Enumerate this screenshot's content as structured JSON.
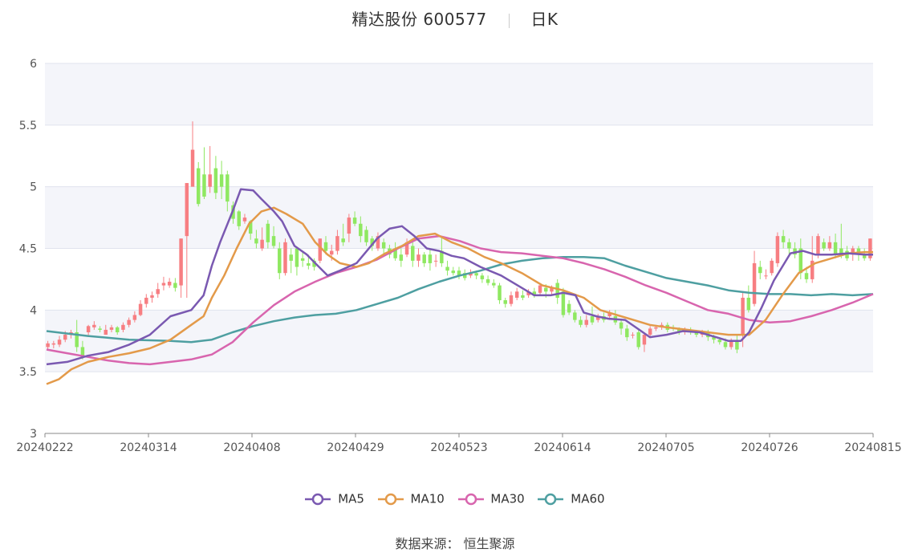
{
  "header": {
    "name": "精达股份",
    "code": "600577",
    "period": "日K"
  },
  "source": {
    "label": "数据来源：",
    "value": "恒生聚源"
  },
  "colors": {
    "up": "#f77e82",
    "down": "#8fe861",
    "ma5": "#7a59b1",
    "ma10": "#e39a4a",
    "ma30": "#d865ae",
    "ma60": "#4e9fa1"
  },
  "chart_data": {
    "type": "candlestick",
    "ylim": [
      3,
      6
    ],
    "yticks": [
      "6",
      "5.5",
      "5",
      "4.5",
      "4",
      "3.5",
      "3"
    ],
    "xticks": [
      "20240222",
      "20240314",
      "20240408",
      "20240429",
      "20240523",
      "20240614",
      "20240705",
      "20240726",
      "20240815"
    ],
    "legend": [
      "MA5",
      "MA10",
      "MA30",
      "MA60"
    ],
    "candles": [
      [
        3.7,
        3.73,
        3.75,
        3.68
      ],
      [
        3.72,
        3.73,
        3.75,
        3.69
      ],
      [
        3.72,
        3.76,
        3.79,
        3.7
      ],
      [
        3.76,
        3.8,
        3.83,
        3.74
      ],
      [
        3.8,
        3.82,
        3.84,
        3.77
      ],
      [
        3.82,
        3.7,
        3.92,
        3.66
      ],
      [
        3.7,
        3.62,
        3.75,
        3.6
      ],
      [
        3.82,
        3.87,
        3.88,
        3.79
      ],
      [
        3.86,
        3.88,
        3.91,
        3.84
      ],
      [
        3.85,
        3.84,
        3.87,
        3.82
      ],
      [
        3.8,
        3.84,
        3.88,
        3.8
      ],
      [
        3.84,
        3.86,
        3.88,
        3.82
      ],
      [
        3.86,
        3.82,
        3.87,
        3.8
      ],
      [
        3.84,
        3.88,
        3.9,
        3.82
      ],
      [
        3.88,
        3.92,
        3.94,
        3.86
      ],
      [
        3.92,
        3.96,
        3.99,
        3.9
      ],
      [
        3.96,
        4.05,
        4.08,
        3.95
      ],
      [
        4.05,
        4.1,
        4.13,
        4.02
      ],
      [
        4.1,
        4.12,
        4.15,
        4.06
      ],
      [
        4.13,
        4.17,
        4.22,
        4.1
      ],
      [
        4.2,
        4.22,
        4.27,
        4.16
      ],
      [
        4.2,
        4.23,
        4.26,
        4.18
      ],
      [
        4.22,
        4.18,
        4.26,
        4.15
      ],
      [
        4.2,
        4.58,
        4.58,
        4.1
      ],
      [
        4.6,
        5.03,
        5.03,
        4.1
      ],
      [
        5.0,
        5.3,
        5.53,
        5.1
      ],
      [
        5.15,
        4.86,
        5.2,
        4.84
      ],
      [
        5.1,
        4.92,
        5.32,
        4.9
      ],
      [
        5.0,
        5.1,
        5.33,
        4.95
      ],
      [
        5.15,
        4.95,
        5.25,
        4.9
      ],
      [
        5.1,
        5.0,
        5.21,
        4.9
      ],
      [
        5.1,
        4.88,
        5.13,
        4.8
      ],
      [
        4.85,
        4.74,
        4.88,
        4.7
      ],
      [
        4.8,
        4.68,
        4.81,
        4.65
      ],
      [
        4.72,
        4.75,
        4.78,
        4.7
      ],
      [
        4.72,
        4.62,
        4.73,
        4.57
      ],
      [
        4.58,
        4.54,
        4.65,
        4.5
      ],
      [
        4.5,
        4.57,
        4.67,
        4.48
      ],
      [
        4.7,
        4.55,
        4.73,
        4.5
      ],
      [
        4.6,
        4.52,
        4.68,
        4.5
      ],
      [
        4.5,
        4.3,
        4.55,
        4.25
      ],
      [
        4.3,
        4.55,
        4.58,
        4.28
      ],
      [
        4.45,
        4.4,
        4.5,
        4.3
      ],
      [
        4.5,
        4.35,
        4.5,
        4.28
      ],
      [
        4.42,
        4.4,
        4.47,
        4.35
      ],
      [
        4.38,
        4.36,
        4.45,
        4.33
      ],
      [
        4.4,
        4.35,
        4.42,
        4.32
      ],
      [
        4.4,
        4.58,
        4.58,
        4.38
      ],
      [
        4.55,
        4.48,
        4.6,
        4.45
      ],
      [
        4.45,
        4.48,
        4.53,
        4.4
      ],
      [
        4.48,
        4.6,
        4.65,
        4.45
      ],
      [
        4.58,
        4.55,
        4.7,
        4.52
      ],
      [
        4.62,
        4.75,
        4.78,
        4.55
      ],
      [
        4.75,
        4.7,
        4.8,
        4.68
      ],
      [
        4.7,
        4.6,
        4.76,
        4.55
      ],
      [
        4.65,
        4.55,
        4.68,
        4.52
      ],
      [
        4.58,
        4.52,
        4.6,
        4.48
      ],
      [
        4.5,
        4.6,
        4.63,
        4.48
      ],
      [
        4.55,
        4.5,
        4.58,
        4.45
      ],
      [
        4.5,
        4.45,
        4.53,
        4.42
      ],
      [
        4.5,
        4.42,
        4.55,
        4.4
      ],
      [
        4.45,
        4.4,
        4.5,
        4.35
      ],
      [
        4.45,
        4.55,
        4.58,
        4.43
      ],
      [
        4.52,
        4.4,
        4.55,
        4.35
      ],
      [
        4.4,
        4.45,
        4.5,
        4.35
      ],
      [
        4.45,
        4.38,
        4.47,
        4.35
      ],
      [
        4.45,
        4.38,
        4.5,
        4.32
      ],
      [
        4.4,
        4.4,
        4.45,
        4.35
      ],
      [
        4.48,
        4.38,
        4.6,
        4.35
      ],
      [
        4.35,
        4.32,
        4.4,
        4.28
      ],
      [
        4.32,
        4.3,
        4.35,
        4.28
      ],
      [
        4.32,
        4.28,
        4.35,
        4.25
      ],
      [
        4.3,
        4.26,
        4.33,
        4.24
      ],
      [
        4.28,
        4.3,
        4.33,
        4.26
      ],
      [
        4.3,
        4.28,
        4.32,
        4.25
      ],
      [
        4.28,
        4.25,
        4.3,
        4.22
      ],
      [
        4.25,
        4.22,
        4.28,
        4.2
      ],
      [
        4.22,
        4.2,
        4.25,
        4.18
      ],
      [
        4.2,
        4.08,
        4.22,
        4.05
      ],
      [
        4.08,
        4.05,
        4.1,
        4.02
      ],
      [
        4.05,
        4.12,
        4.15,
        4.03
      ],
      [
        4.1,
        4.15,
        4.18,
        4.08
      ],
      [
        4.12,
        4.1,
        4.16,
        4.08
      ],
      [
        4.12,
        4.15,
        4.17,
        4.1
      ],
      [
        4.15,
        4.12,
        4.18,
        4.1
      ],
      [
        4.14,
        4.2,
        4.22,
        4.12
      ],
      [
        4.18,
        4.15,
        4.21,
        4.1
      ],
      [
        4.15,
        4.18,
        4.2,
        4.12
      ],
      [
        4.22,
        4.1,
        4.25,
        4.05
      ],
      [
        4.15,
        3.96,
        4.18,
        3.94
      ],
      [
        4.05,
        3.98,
        4.08,
        3.96
      ],
      [
        3.98,
        3.92,
        4.0,
        3.9
      ],
      [
        3.92,
        3.88,
        3.95,
        3.86
      ],
      [
        3.88,
        3.92,
        3.96,
        3.86
      ],
      [
        3.95,
        3.9,
        4.03,
        3.88
      ],
      [
        3.92,
        3.95,
        3.97,
        3.9
      ],
      [
        3.95,
        3.92,
        3.98,
        3.9
      ],
      [
        3.95,
        3.98,
        4.0,
        3.92
      ],
      [
        3.95,
        3.9,
        4.0,
        3.88
      ],
      [
        3.9,
        3.85,
        3.93,
        3.8
      ],
      [
        3.85,
        3.78,
        3.88,
        3.75
      ],
      [
        3.8,
        3.8,
        3.82,
        3.77
      ],
      [
        3.82,
        3.7,
        3.85,
        3.68
      ],
      [
        3.72,
        3.8,
        3.82,
        3.66
      ],
      [
        3.8,
        3.85,
        3.87,
        3.78
      ],
      [
        3.85,
        3.86,
        3.88,
        3.83
      ],
      [
        3.86,
        3.88,
        3.9,
        3.84
      ],
      [
        3.88,
        3.84,
        3.9,
        3.82
      ],
      [
        3.86,
        3.85,
        3.88,
        3.83
      ],
      [
        3.85,
        3.82,
        3.86,
        3.8
      ],
      [
        3.82,
        3.84,
        3.86,
        3.8
      ],
      [
        3.84,
        3.82,
        3.86,
        3.8
      ],
      [
        3.82,
        3.8,
        3.84,
        3.78
      ],
      [
        3.8,
        3.82,
        3.84,
        3.78
      ],
      [
        3.82,
        3.78,
        3.84,
        3.75
      ],
      [
        3.78,
        3.76,
        3.8,
        3.73
      ],
      [
        3.76,
        3.74,
        3.78,
        3.72
      ],
      [
        3.74,
        3.7,
        3.77,
        3.68
      ],
      [
        3.7,
        3.75,
        3.77,
        3.68
      ],
      [
        3.75,
        3.68,
        3.8,
        3.65
      ],
      [
        3.8,
        4.1,
        4.15,
        3.7
      ],
      [
        4.1,
        4.0,
        4.2,
        3.98
      ],
      [
        4.05,
        4.38,
        4.48,
        4.03
      ],
      [
        4.35,
        4.3,
        4.4,
        4.25
      ],
      [
        4.28,
        4.28,
        4.33,
        4.25
      ],
      [
        4.3,
        4.4,
        4.42,
        4.28
      ],
      [
        4.38,
        4.6,
        4.63,
        4.35
      ],
      [
        4.6,
        4.55,
        4.65,
        4.5
      ],
      [
        4.55,
        4.5,
        4.58,
        4.45
      ],
      [
        4.5,
        4.45,
        4.55,
        4.42
      ],
      [
        4.5,
        4.3,
        4.58,
        4.25
      ],
      [
        4.3,
        4.25,
        4.35,
        4.22
      ],
      [
        4.25,
        4.4,
        4.6,
        4.22
      ],
      [
        4.45,
        4.6,
        4.62,
        4.42
      ],
      [
        4.55,
        4.5,
        4.58,
        4.48
      ],
      [
        4.5,
        4.55,
        4.6,
        4.48
      ],
      [
        4.55,
        4.45,
        4.62,
        4.42
      ],
      [
        4.5,
        4.45,
        4.7,
        4.42
      ],
      [
        4.48,
        4.42,
        4.52,
        4.4
      ],
      [
        4.45,
        4.5,
        4.52,
        4.4
      ],
      [
        4.5,
        4.45,
        4.52,
        4.4
      ],
      [
        4.45,
        4.42,
        4.5,
        4.4
      ],
      [
        4.42,
        4.58,
        4.58,
        4.4
      ]
    ],
    "ma5": [
      [
        0,
        3.56
      ],
      [
        5,
        3.58
      ],
      [
        10,
        3.63
      ],
      [
        15,
        3.66
      ],
      [
        20,
        3.72
      ],
      [
        25,
        3.8
      ],
      [
        30,
        3.95
      ],
      [
        35,
        4.0
      ],
      [
        38,
        4.12
      ],
      [
        40,
        4.36
      ],
      [
        42,
        4.55
      ],
      [
        45,
        4.8
      ],
      [
        47,
        4.98
      ],
      [
        50,
        4.97
      ],
      [
        52,
        4.9
      ],
      [
        55,
        4.8
      ],
      [
        57,
        4.72
      ],
      [
        60,
        4.52
      ],
      [
        63,
        4.45
      ],
      [
        65,
        4.38
      ],
      [
        68,
        4.28
      ],
      [
        71,
        4.32
      ],
      [
        75,
        4.38
      ],
      [
        80,
        4.58
      ],
      [
        83,
        4.66
      ],
      [
        86,
        4.68
      ],
      [
        89,
        4.6
      ],
      [
        92,
        4.5
      ],
      [
        95,
        4.48
      ],
      [
        98,
        4.44
      ],
      [
        101,
        4.42
      ],
      [
        105,
        4.35
      ],
      [
        110,
        4.28
      ],
      [
        115,
        4.18
      ],
      [
        118,
        4.12
      ],
      [
        122,
        4.12
      ],
      [
        125,
        4.14
      ],
      [
        128,
        4.12
      ],
      [
        130,
        3.98
      ],
      [
        133,
        3.95
      ],
      [
        136,
        3.93
      ],
      [
        140,
        3.92
      ],
      [
        143,
        3.85
      ],
      [
        146,
        3.78
      ],
      [
        150,
        3.8
      ],
      [
        154,
        3.83
      ],
      [
        158,
        3.82
      ],
      [
        162,
        3.78
      ],
      [
        165,
        3.75
      ],
      [
        168,
        3.75
      ],
      [
        170,
        3.82
      ],
      [
        173,
        4.02
      ],
      [
        176,
        4.24
      ],
      [
        180,
        4.46
      ],
      [
        183,
        4.48
      ],
      [
        186,
        4.45
      ],
      [
        190,
        4.45
      ],
      [
        194,
        4.46
      ],
      [
        198,
        4.45
      ],
      [
        200,
        4.45
      ]
    ],
    "ma10": [
      [
        0,
        3.4
      ],
      [
        3,
        3.44
      ],
      [
        6,
        3.52
      ],
      [
        10,
        3.58
      ],
      [
        15,
        3.62
      ],
      [
        20,
        3.65
      ],
      [
        25,
        3.69
      ],
      [
        30,
        3.76
      ],
      [
        35,
        3.88
      ],
      [
        38,
        3.95
      ],
      [
        40,
        4.1
      ],
      [
        43,
        4.28
      ],
      [
        46,
        4.5
      ],
      [
        49,
        4.7
      ],
      [
        52,
        4.8
      ],
      [
        55,
        4.83
      ],
      [
        58,
        4.78
      ],
      [
        62,
        4.7
      ],
      [
        65,
        4.55
      ],
      [
        68,
        4.45
      ],
      [
        71,
        4.38
      ],
      [
        75,
        4.35
      ],
      [
        78,
        4.38
      ],
      [
        82,
        4.46
      ],
      [
        86,
        4.52
      ],
      [
        90,
        4.6
      ],
      [
        94,
        4.62
      ],
      [
        98,
        4.55
      ],
      [
        102,
        4.5
      ],
      [
        106,
        4.43
      ],
      [
        110,
        4.38
      ],
      [
        115,
        4.3
      ],
      [
        120,
        4.2
      ],
      [
        125,
        4.16
      ],
      [
        130,
        4.1
      ],
      [
        134,
        4.0
      ],
      [
        138,
        3.96
      ],
      [
        142,
        3.92
      ],
      [
        146,
        3.88
      ],
      [
        150,
        3.86
      ],
      [
        155,
        3.84
      ],
      [
        160,
        3.82
      ],
      [
        165,
        3.8
      ],
      [
        170,
        3.8
      ],
      [
        174,
        3.92
      ],
      [
        178,
        4.12
      ],
      [
        182,
        4.3
      ],
      [
        186,
        4.38
      ],
      [
        190,
        4.42
      ],
      [
        194,
        4.46
      ],
      [
        198,
        4.47
      ],
      [
        200,
        4.47
      ]
    ],
    "ma30": [
      [
        0,
        3.68
      ],
      [
        5,
        3.65
      ],
      [
        10,
        3.62
      ],
      [
        15,
        3.59
      ],
      [
        20,
        3.57
      ],
      [
        25,
        3.56
      ],
      [
        30,
        3.58
      ],
      [
        35,
        3.6
      ],
      [
        40,
        3.64
      ],
      [
        45,
        3.74
      ],
      [
        50,
        3.9
      ],
      [
        55,
        4.04
      ],
      [
        60,
        4.15
      ],
      [
        65,
        4.23
      ],
      [
        70,
        4.3
      ],
      [
        75,
        4.35
      ],
      [
        80,
        4.41
      ],
      [
        85,
        4.5
      ],
      [
        90,
        4.58
      ],
      [
        95,
        4.6
      ],
      [
        100,
        4.56
      ],
      [
        105,
        4.5
      ],
      [
        110,
        4.47
      ],
      [
        115,
        4.46
      ],
      [
        120,
        4.44
      ],
      [
        125,
        4.42
      ],
      [
        130,
        4.38
      ],
      [
        135,
        4.33
      ],
      [
        140,
        4.27
      ],
      [
        145,
        4.2
      ],
      [
        150,
        4.14
      ],
      [
        155,
        4.07
      ],
      [
        160,
        4.0
      ],
      [
        165,
        3.97
      ],
      [
        170,
        3.92
      ],
      [
        175,
        3.9
      ],
      [
        180,
        3.91
      ],
      [
        185,
        3.95
      ],
      [
        190,
        4.0
      ],
      [
        195,
        4.06
      ],
      [
        200,
        4.13
      ]
    ],
    "ma60": [
      [
        0,
        3.83
      ],
      [
        10,
        3.79
      ],
      [
        20,
        3.76
      ],
      [
        30,
        3.75
      ],
      [
        35,
        3.74
      ],
      [
        40,
        3.76
      ],
      [
        45,
        3.82
      ],
      [
        50,
        3.87
      ],
      [
        55,
        3.91
      ],
      [
        60,
        3.94
      ],
      [
        65,
        3.96
      ],
      [
        70,
        3.97
      ],
      [
        75,
        4.0
      ],
      [
        80,
        4.05
      ],
      [
        85,
        4.1
      ],
      [
        90,
        4.17
      ],
      [
        95,
        4.23
      ],
      [
        100,
        4.28
      ],
      [
        105,
        4.32
      ],
      [
        110,
        4.37
      ],
      [
        115,
        4.4
      ],
      [
        120,
        4.42
      ],
      [
        125,
        4.43
      ],
      [
        130,
        4.43
      ],
      [
        135,
        4.42
      ],
      [
        140,
        4.36
      ],
      [
        145,
        4.31
      ],
      [
        150,
        4.26
      ],
      [
        155,
        4.23
      ],
      [
        160,
        4.2
      ],
      [
        165,
        4.16
      ],
      [
        170,
        4.14
      ],
      [
        175,
        4.13
      ],
      [
        180,
        4.13
      ],
      [
        185,
        4.12
      ],
      [
        190,
        4.13
      ],
      [
        195,
        4.12
      ],
      [
        200,
        4.13
      ]
    ]
  }
}
